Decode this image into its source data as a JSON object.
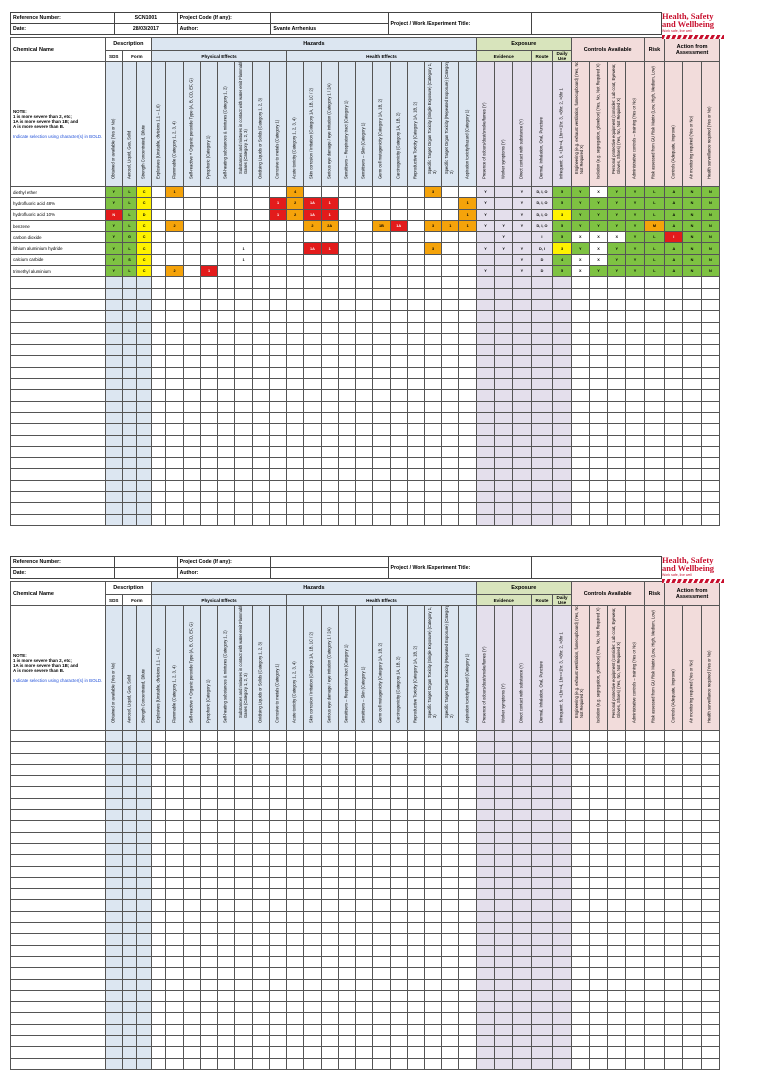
{
  "header": {
    "ref_label": "Reference Number:",
    "ref_value": "SCN1001",
    "date_label": "Date:",
    "date_value": "28/03/2017",
    "project_code_label": "Project Code (If any):",
    "author_label": "Author:",
    "author_value": "Svante Arrhenius",
    "project_title_label": "Project / Work /Experiment Title:"
  },
  "logo": {
    "line1": "Health, Safety",
    "line2": "and Wellbeing",
    "line3": "Work safe, live well"
  },
  "groups": {
    "chemical_name": "Chemical Name",
    "description": "Description",
    "hazards": "Hazards",
    "exposure": "Exposure",
    "controls": "Controls Available",
    "risk": "Risk",
    "action": "Action from Assessment"
  },
  "subgroups": {
    "sds": "SDS",
    "form": "Form",
    "physical": "Physical Effects",
    "health": "Health Effects",
    "evidence": "Evidence",
    "route": "Route",
    "daily": "Daily Use"
  },
  "note": {
    "title": "NOTE:",
    "line1": "1 is more severe than 2, etc;",
    "line2": "1A is more severe than 1B; and",
    "line3": "A is more severe than B.",
    "line4": "Indicate selection using character(s) in BOLD."
  },
  "columns": [
    "Obtained or available (Yes or No)",
    "Aerosol, Liquid, Gas, Solid",
    "Strength Concentrated, Dilute",
    "Explosives (Unstable, divisions 1.1 – 1.6)",
    "Flammable (Category 1, 2, 3, 4)",
    "Self-reactive + Organic peroxide Type (A, B, CD, EF, G)",
    "Pyrophoric (Category 1)",
    "Self-heating substances & mixtures (Category 1, 2)",
    "Substances and mixtures in contact with water emit Flammable Gases (Category 1, 2, 3)",
    "Oxidising Liquids or Solids (Category 1, 2, 3)",
    "Corrosive to metals (Category 1)",
    "Acute toxicity (Category 1, 2, 3, 4)",
    "Skin corrosion / irritation (Category 1A, 1B, 1C / 2)",
    "Serious eye damage / eye irritation (Category 1 / 2A)",
    "Sensitisers – Respiratory tract (Category 1)",
    "Sensitisers – Skin (Category 1)",
    "Germ cell mutagenicity (Category 1A, 1B, 2)",
    "Carcinogenicity (Category 1A, 1B, 2)",
    "Reproductive Toxicity (Category 1A, 1B, 2)",
    "Specific Target Organ Toxicity (Single Exposure) (Category 1, 2, 3)",
    "Specific Target Organ Toxicity (Repeated Exposure) (Category 1, 2)",
    "Aspiration toxicity/hazard (Category 1)",
    "Presence of odours/dust/smoke/fumes (Y)",
    "Worker symptoms (Y)",
    "Direct contact with substance (Y)",
    "Dermal, Inhalation, Oral, Puncture",
    "Infrequent: 5, <1hr=4, 1hr=<1hr: 3, <8hr: 2, >8hr 1",
    "Engineering (e.g. exhaust ventilation, fumecupboard) (Yes, No, Not Required X)",
    "Isolation (e.g. segregation, glovebox) (Yes, No, Not Required X)",
    "Personal protective equipment (consider: Lab coat, Eyewear, Gloves, Shoes) (Yes, No, Not Required X)",
    "Administrative controls – training (Yes or No)",
    "Risk assessed from GU Risk Matrix (Low, High, Medium, Low)",
    "Controls (Adequate, Improve)",
    "Air monitoring required (Yes or No)",
    "Health surveillance required (Yes or No)"
  ],
  "rows": [
    {
      "name": "diethyl ether",
      "cells": [
        "Y",
        "L",
        "C",
        "",
        "1",
        "",
        "",
        "",
        "",
        "",
        "",
        "4",
        "",
        "",
        "",
        "",
        "",
        "",
        "",
        "3",
        "",
        "",
        "Y",
        "",
        "Y",
        "D, I, O",
        "5",
        "Y",
        "X",
        "Y",
        "Y",
        "L",
        "A",
        "N",
        "N"
      ]
    },
    {
      "name": "hydrofluoric acid 48%",
      "cells": [
        "Y",
        "L",
        "C",
        "",
        "",
        "",
        "",
        "",
        "",
        "",
        "1",
        "2",
        "1A",
        "1",
        "",
        "",
        "",
        "",
        "",
        "",
        "",
        "1",
        "Y",
        "",
        "Y",
        "D, I, O",
        "5",
        "Y",
        "Y",
        "Y",
        "Y",
        "L",
        "A",
        "N",
        "N"
      ]
    },
    {
      "name": "hydrofluoric acid 10%",
      "cells": [
        "N",
        "L",
        "D",
        "",
        "",
        "",
        "",
        "",
        "",
        "",
        "1",
        "2",
        "1A",
        "1",
        "",
        "",
        "",
        "",
        "",
        "",
        "",
        "1",
        "Y",
        "",
        "Y",
        "D, I, O",
        "3",
        "Y",
        "Y",
        "Y",
        "Y",
        "L",
        "A",
        "N",
        "N"
      ]
    },
    {
      "name": "benzene",
      "cells": [
        "Y",
        "L",
        "C",
        "",
        "2",
        "",
        "",
        "",
        "",
        "",
        "",
        "",
        "2",
        "2A",
        "",
        "",
        "1B",
        "1A",
        "",
        "3",
        "1",
        "1",
        "Y",
        "Y",
        "Y",
        "D, I, O",
        "5",
        "Y",
        "Y",
        "Y",
        "Y",
        "M",
        "A",
        "N",
        "N"
      ]
    },
    {
      "name": "carbon dioxide",
      "cells": [
        "Y",
        "G",
        "C",
        "",
        "",
        "",
        "",
        "",
        "",
        "",
        "",
        "",
        "",
        "",
        "",
        "",
        "",
        "",
        "",
        "",
        "",
        "",
        "",
        "Y",
        "",
        "I",
        "5",
        "X",
        "X",
        "X",
        "Y",
        "L",
        "I",
        "N",
        "N"
      ]
    },
    {
      "name": "lithium aluminium hydride",
      "cells": [
        "Y",
        "L",
        "C",
        "",
        "",
        "",
        "",
        "",
        "1",
        "",
        "",
        "",
        "1A",
        "1",
        "",
        "",
        "",
        "",
        "",
        "3",
        "",
        "",
        "Y",
        "Y",
        "Y",
        "D, I",
        "3",
        "Y",
        "X",
        "Y",
        "Y",
        "L",
        "A",
        "N",
        "N"
      ]
    },
    {
      "name": "calcium carbide",
      "cells": [
        "Y",
        "S",
        "C",
        "",
        "",
        "",
        "",
        "",
        "1",
        "",
        "",
        "",
        "",
        "",
        "",
        "",
        "",
        "",
        "",
        "",
        "",
        "",
        "",
        "",
        "Y",
        "D",
        "4",
        "X",
        "X",
        "Y",
        "Y",
        "L",
        "A",
        "N",
        "N"
      ]
    },
    {
      "name": "trimethyl aluminium",
      "cells": [
        "Y",
        "L",
        "C",
        "",
        "2",
        "",
        "1",
        "",
        "",
        "",
        "",
        "",
        "",
        "",
        "",
        "",
        "",
        "",
        "",
        "",
        "",
        "",
        "Y",
        "",
        "Y",
        "D",
        "5",
        "X",
        "Y",
        "Y",
        "Y",
        "L",
        "A",
        "N",
        "N"
      ]
    }
  ],
  "colors": {
    "green": "#7ec242",
    "orange": "#f5a30a",
    "red": "#e31b1b",
    "yellow": "#fff200",
    "blue_band": "#dce6f1",
    "pink_band": "#f2dcdb",
    "green_band": "#d8e4bc",
    "brand_red": "#c8102e"
  }
}
